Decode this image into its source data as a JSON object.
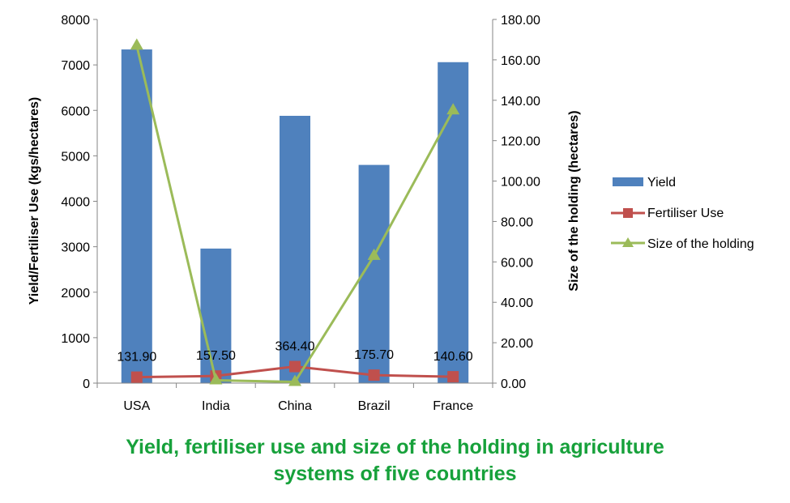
{
  "chart_data": {
    "type": "bar",
    "title_lines": [
      "Yield, fertiliser use and size of the holding in agriculture",
      "systems of five countries"
    ],
    "categories": [
      "USA",
      "India",
      "China",
      "Brazil",
      "France"
    ],
    "ylabel": "Yield/Fertiliser Use (kgs/hectares)",
    "y2label": "Size of the holding (hectares)",
    "ylim": [
      0,
      8000
    ],
    "y_ticks": [
      "0",
      "1000",
      "2000",
      "3000",
      "4000",
      "5000",
      "6000",
      "7000",
      "8000"
    ],
    "y2lim": [
      0,
      180
    ],
    "y2_ticks": [
      "0.00",
      "20.00",
      "40.00",
      "60.00",
      "80.00",
      "100.00",
      "120.00",
      "140.00",
      "160.00",
      "180.00"
    ],
    "grid": false,
    "legend_position": "right",
    "series": [
      {
        "name": "Yield",
        "type": "bar",
        "axis": "left",
        "color": "#4f81bd",
        "values": [
          7340,
          2960,
          5880,
          4800,
          7060
        ]
      },
      {
        "name": "Fertiliser Use",
        "type": "line",
        "axis": "left",
        "color": "#c0504d",
        "marker": "square",
        "values": [
          131.9,
          157.5,
          364.4,
          175.7,
          140.6
        ],
        "labels": [
          "131.90",
          "157.50",
          "364.40",
          "175.70",
          "140.60"
        ]
      },
      {
        "name": "Size of the holding",
        "type": "line",
        "axis": "right",
        "color": "#9bbb59",
        "marker": "triangle",
        "values": [
          167,
          1.4,
          0.6,
          63,
          135
        ]
      }
    ]
  }
}
